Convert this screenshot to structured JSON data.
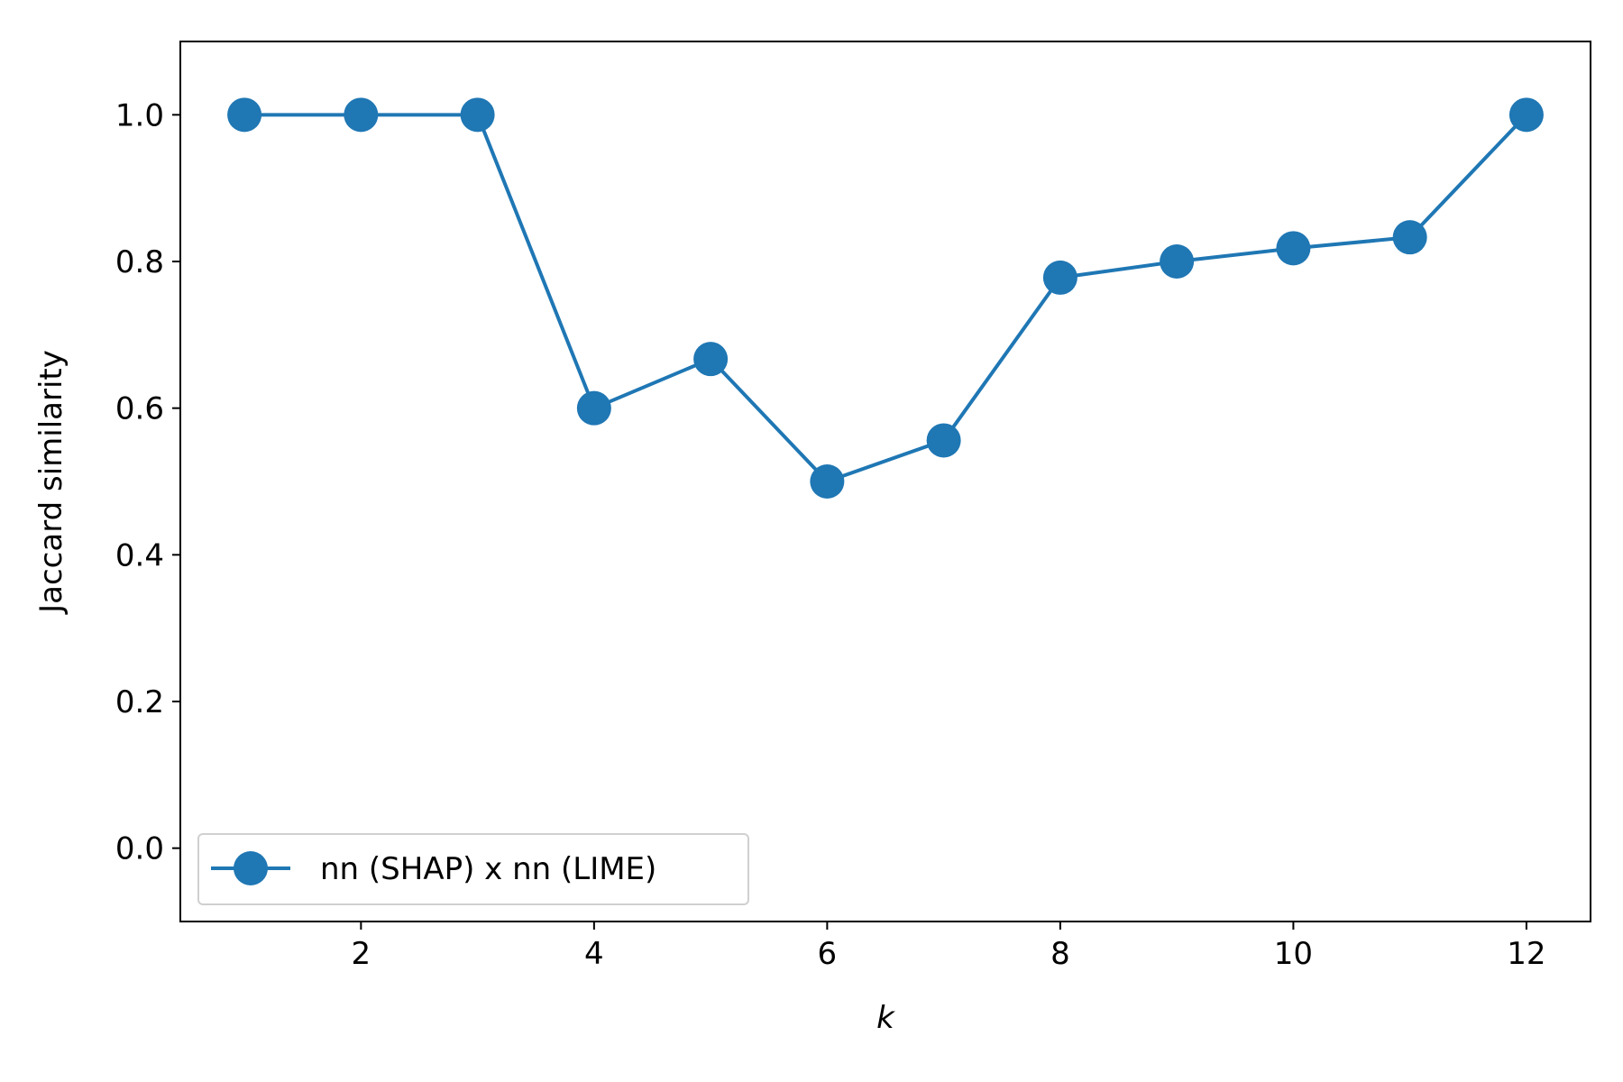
{
  "chart_data": {
    "type": "line",
    "title": "",
    "xlabel": "k",
    "ylabel": "Jaccard similarity",
    "xlim": [
      0.45,
      12.55
    ],
    "ylim": [
      -0.1,
      1.1
    ],
    "x_ticks": [
      2,
      4,
      6,
      8,
      10,
      12
    ],
    "x_tick_labels": [
      "2",
      "4",
      "6",
      "8",
      "10",
      "12"
    ],
    "y_ticks": [
      0.0,
      0.2,
      0.4,
      0.6,
      0.8,
      1.0
    ],
    "y_tick_labels": [
      "0.0",
      "0.2",
      "0.4",
      "0.6",
      "0.8",
      "1.0"
    ],
    "grid": false,
    "legend_position": "lower-left",
    "series": [
      {
        "name": "nn (SHAP) x nn (LIME)",
        "color": "#1f77b4",
        "marker": "circle",
        "x": [
          1,
          2,
          3,
          4,
          5,
          6,
          7,
          8,
          9,
          10,
          11,
          12
        ],
        "y": [
          1.0,
          1.0,
          1.0,
          0.6,
          0.667,
          0.5,
          0.556,
          0.778,
          0.8,
          0.818,
          0.833,
          1.0
        ]
      }
    ]
  }
}
